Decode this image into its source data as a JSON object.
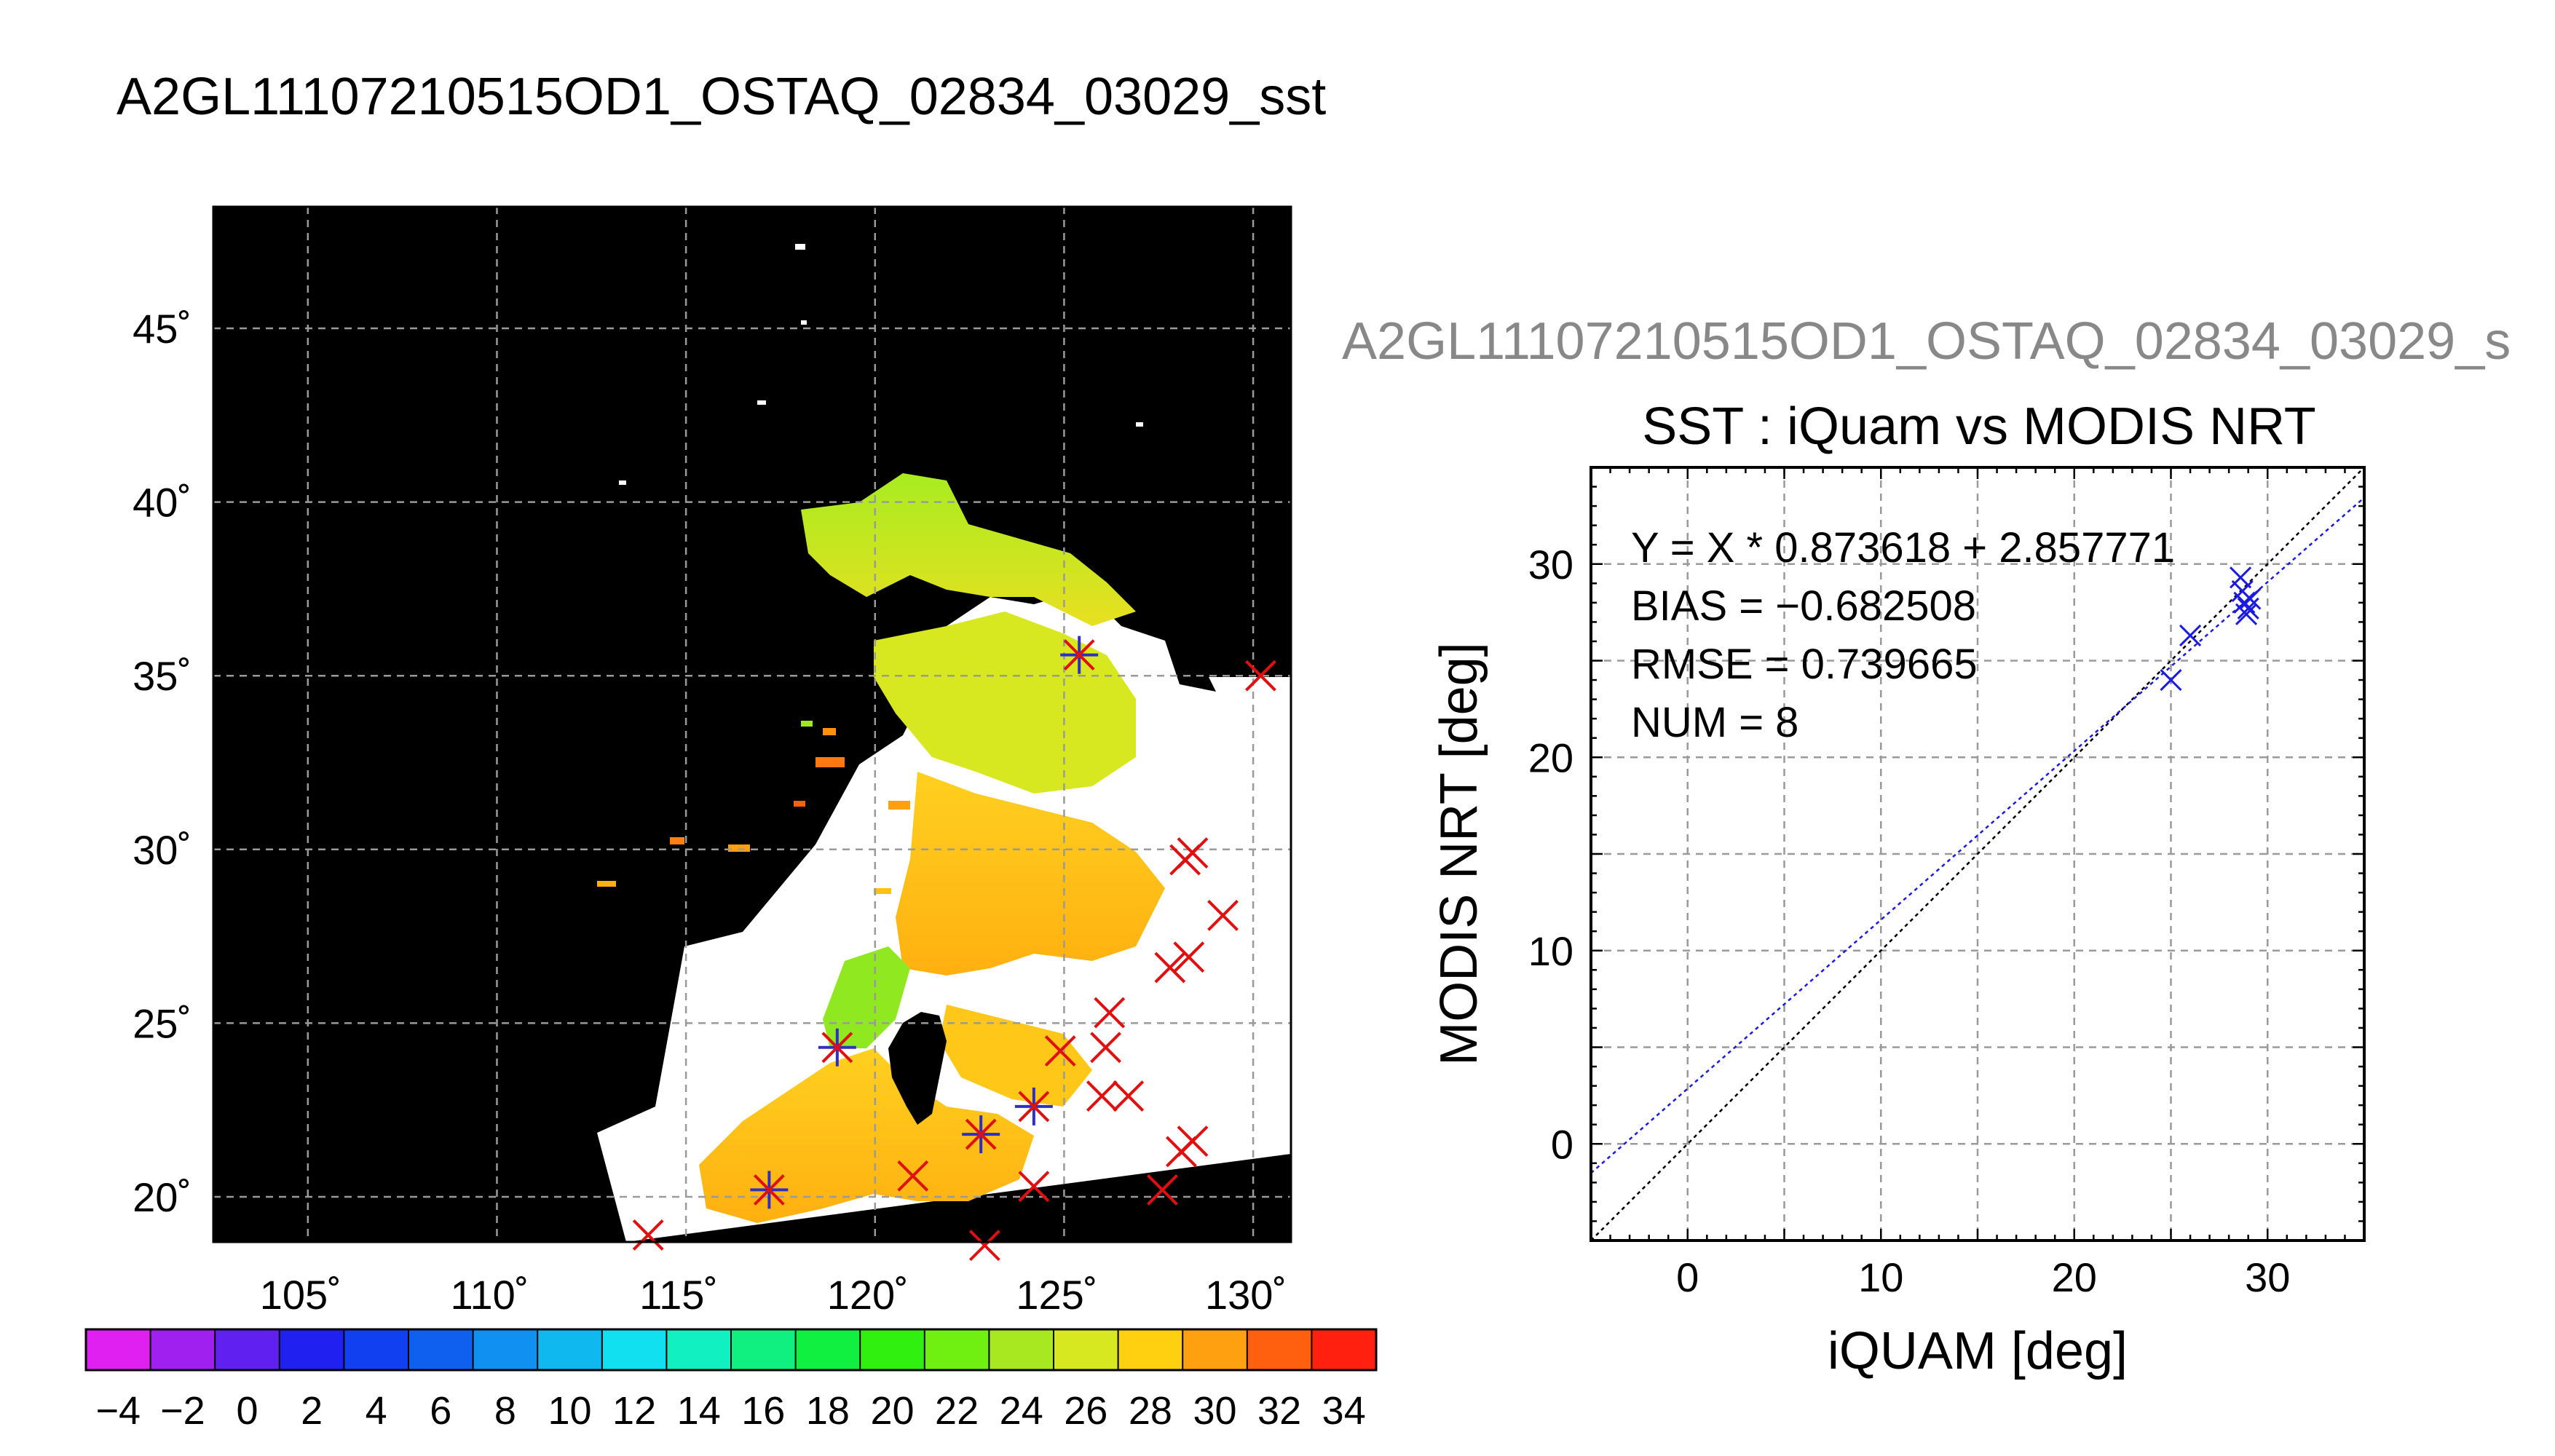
{
  "main_title": "A2GL11107210515OD1_OSTAQ_02834_03029_sst",
  "scatter_supertitle": "A2GL11107210515OD1_OSTAQ_02834_03029_s",
  "colors": {
    "land": "#000000",
    "no_data": "#ffffff",
    "grid": "#9a9a9a",
    "match_marker": "#e01010",
    "overlay_marker": "#3030c0",
    "scatter_marker": "#1a1ae0",
    "fit_line": "#1a1ae0",
    "one_to_one_line": "#000000"
  },
  "chart_data": [
    {
      "type": "heatmap",
      "description_kind": "map",
      "xlim": [
        102.5,
        131
      ],
      "ylim": [
        18.7,
        48.5
      ],
      "x_ticks": [
        105,
        110,
        115,
        120,
        125,
        130
      ],
      "y_ticks": [
        20,
        25,
        30,
        35,
        40,
        45
      ],
      "x_tick_labels": [
        "105˚",
        "110˚",
        "115˚",
        "120˚",
        "125˚",
        "130˚"
      ],
      "y_tick_labels": [
        "20˚",
        "25˚",
        "30˚",
        "35˚",
        "40˚",
        "45˚"
      ],
      "grid": true,
      "match_points": [
        {
          "lon": 125.4,
          "lat": 35.6,
          "overlay": true
        },
        {
          "lon": 130.2,
          "lat": 35.0,
          "overlay": false
        },
        {
          "lon": 128.4,
          "lat": 29.9,
          "overlay": false
        },
        {
          "lon": 128.2,
          "lat": 29.7,
          "overlay": false
        },
        {
          "lon": 129.2,
          "lat": 28.1,
          "overlay": false
        },
        {
          "lon": 127.8,
          "lat": 26.6,
          "overlay": false
        },
        {
          "lon": 128.3,
          "lat": 26.9,
          "overlay": false
        },
        {
          "lon": 126.2,
          "lat": 25.3,
          "overlay": false
        },
        {
          "lon": 124.9,
          "lat": 24.2,
          "overlay": false
        },
        {
          "lon": 126.1,
          "lat": 24.3,
          "overlay": false
        },
        {
          "lon": 119.0,
          "lat": 24.3,
          "overlay": true
        },
        {
          "lon": 126.0,
          "lat": 22.9,
          "overlay": false
        },
        {
          "lon": 126.7,
          "lat": 22.9,
          "overlay": false
        },
        {
          "lon": 124.2,
          "lat": 22.6,
          "overlay": true
        },
        {
          "lon": 122.8,
          "lat": 21.8,
          "overlay": true
        },
        {
          "lon": 128.4,
          "lat": 21.6,
          "overlay": false
        },
        {
          "lon": 128.1,
          "lat": 21.3,
          "overlay": false
        },
        {
          "lon": 121.0,
          "lat": 20.6,
          "overlay": false
        },
        {
          "lon": 124.2,
          "lat": 20.3,
          "overlay": false
        },
        {
          "lon": 127.6,
          "lat": 20.2,
          "overlay": false
        },
        {
          "lon": 117.2,
          "lat": 20.2,
          "overlay": true
        },
        {
          "lon": 114.0,
          "lat": 18.9,
          "overlay": false
        },
        {
          "lon": 122.9,
          "lat": 18.6,
          "overlay": false
        }
      ]
    },
    {
      "type": "colorbar",
      "vmin": -5,
      "vmax": 35,
      "step": 2,
      "tick_labels": [
        "−4",
        "−2",
        "0",
        "2",
        "4",
        "6",
        "8",
        "10",
        "12",
        "14",
        "16",
        "18",
        "20",
        "22",
        "24",
        "26",
        "28",
        "30",
        "32",
        "34"
      ],
      "colors": [
        "#e020f0",
        "#a020f0",
        "#6020f0",
        "#2020f0",
        "#1040f0",
        "#1060f0",
        "#1090f0",
        "#10b8f0",
        "#10e0f0",
        "#10f0c0",
        "#10f080",
        "#10f040",
        "#30f010",
        "#70f010",
        "#a8e820",
        "#d8e820",
        "#ffd010",
        "#ffa010",
        "#ff6010",
        "#ff2010"
      ]
    },
    {
      "type": "scatter",
      "title": "SST : iQuam vs MODIS NRT",
      "xlabel": "iQUAM [deg]",
      "ylabel": "MODIS NRT [deg]",
      "xlim": [
        -5,
        35
      ],
      "ylim": [
        -5,
        35
      ],
      "x_ticks": [
        0,
        10,
        20,
        30
      ],
      "y_ticks": [
        0,
        10,
        20,
        30
      ],
      "x_tick_labels": [
        "0",
        "10",
        "20",
        "30"
      ],
      "y_tick_labels": [
        "0",
        "10",
        "20",
        "30"
      ],
      "grid": true,
      "annotations": [
        "Y = X * 0.873618 + 2.857771",
        "BIAS = −0.682508",
        "RMSE = 0.739665",
        "NUM = 8"
      ],
      "fit": {
        "slope": 0.873618,
        "intercept": 2.857771
      },
      "points": [
        {
          "x": 25.0,
          "y": 24.0
        },
        {
          "x": 26.0,
          "y": 26.3
        },
        {
          "x": 28.6,
          "y": 29.3
        },
        {
          "x": 28.7,
          "y": 28.6
        },
        {
          "x": 28.8,
          "y": 28.0
        },
        {
          "x": 29.0,
          "y": 27.7
        },
        {
          "x": 28.9,
          "y": 27.4
        },
        {
          "x": 29.1,
          "y": 28.2
        }
      ]
    }
  ]
}
